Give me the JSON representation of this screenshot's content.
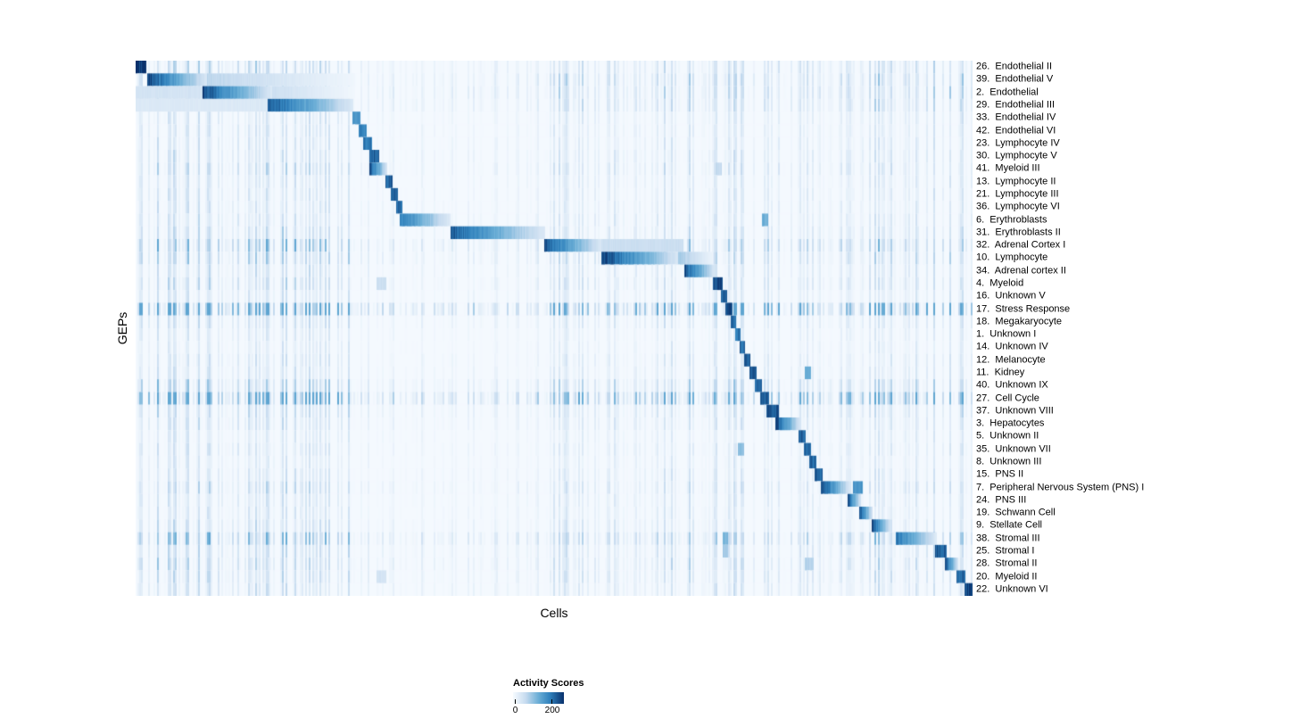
{
  "legend": {
    "title": "Activity Scores",
    "min_label": "0",
    "max_label": "200"
  },
  "chart_data": {
    "type": "heatmap",
    "xlabel": "Cells",
    "ylabel": "GEPs",
    "colormap": "Blues",
    "color_min": "#f7fbff",
    "color_max": "#08306b",
    "value_range_shown": [
      0,
      200
    ],
    "colorbar": {
      "label": "Activity Scores",
      "tick_labels": [
        "0",
        "200"
      ]
    },
    "n_rows": 42,
    "noise_regions": [
      [
        0.0,
        0.02,
        1.2
      ],
      [
        0.02,
        0.26,
        1.6
      ],
      [
        0.26,
        0.49,
        0.55
      ],
      [
        0.49,
        0.63,
        1.1
      ],
      [
        0.63,
        0.74,
        1.5
      ],
      [
        0.74,
        0.88,
        1.0
      ],
      [
        0.88,
        1.0,
        1.4
      ]
    ],
    "rows": [
      {
        "label": "26.  Endothelial II",
        "noise": 0.18,
        "blocks": [
          [
            0.0,
            0.013,
            0.97,
            0
          ]
        ]
      },
      {
        "label": "39.  Endothelial V",
        "noise": 0.22,
        "blocks": [
          [
            0.014,
            0.085,
            0.95,
            1
          ],
          [
            0.085,
            0.26,
            0.28,
            1
          ]
        ]
      },
      {
        "label": "2.  Endothelial",
        "noise": 0.22,
        "blocks": [
          [
            0.0,
            0.08,
            0.18,
            0
          ],
          [
            0.08,
            0.163,
            0.93,
            1
          ],
          [
            0.163,
            0.26,
            0.22,
            1
          ]
        ]
      },
      {
        "label": "29.  Endothelial III",
        "noise": 0.2,
        "blocks": [
          [
            0.0,
            0.158,
            0.14,
            0
          ],
          [
            0.158,
            0.26,
            0.9,
            1
          ]
        ]
      },
      {
        "label": "33.  Endothelial IV",
        "noise": 0.12,
        "blocks": [
          [
            0.259,
            0.269,
            0.65,
            0
          ]
        ]
      },
      {
        "label": "42.  Endothelial VI",
        "noise": 0.12,
        "blocks": [
          [
            0.266,
            0.276,
            0.72,
            0
          ]
        ]
      },
      {
        "label": "23.  Lymphocyte IV",
        "noise": 0.12,
        "blocks": [
          [
            0.272,
            0.282,
            0.78,
            0
          ]
        ]
      },
      {
        "label": "30.  Lymphocyte V",
        "noise": 0.14,
        "blocks": [
          [
            0.279,
            0.291,
            0.85,
            0
          ]
        ]
      },
      {
        "label": "41.  Myeloid III",
        "noise": 0.16,
        "blocks": [
          [
            0.279,
            0.301,
            0.92,
            1
          ],
          [
            0.693,
            0.7,
            0.25,
            0
          ]
        ]
      },
      {
        "label": "13.  Lymphocyte II",
        "noise": 0.12,
        "blocks": [
          [
            0.299,
            0.307,
            0.85,
            0
          ]
        ]
      },
      {
        "label": "21.  Lymphocyte III",
        "noise": 0.12,
        "blocks": [
          [
            0.305,
            0.313,
            0.85,
            0
          ]
        ]
      },
      {
        "label": "36.  Lymphocyte VI",
        "noise": 0.12,
        "blocks": [
          [
            0.311,
            0.319,
            0.82,
            0
          ]
        ]
      },
      {
        "label": "6.  Erythroblasts",
        "noise": 0.14,
        "blocks": [
          [
            0.316,
            0.376,
            0.78,
            1
          ],
          [
            0.748,
            0.756,
            0.5,
            0
          ]
        ]
      },
      {
        "label": "31.  Erythroblasts II",
        "noise": 0.16,
        "blocks": [
          [
            0.376,
            0.489,
            0.88,
            1
          ]
        ]
      },
      {
        "label": "32.  Adrenal Cortex I",
        "noise": 0.28,
        "blocks": [
          [
            0.488,
            0.556,
            0.92,
            1
          ],
          [
            0.556,
            0.655,
            0.22,
            0
          ]
        ]
      },
      {
        "label": "10.  Lymphocyte",
        "noise": 0.2,
        "blocks": [
          [
            0.556,
            0.648,
            0.97,
            1
          ],
          [
            0.648,
            0.69,
            0.35,
            1
          ]
        ]
      },
      {
        "label": "34.  Adrenal cortex II",
        "noise": 0.14,
        "blocks": [
          [
            0.656,
            0.692,
            0.93,
            1
          ]
        ]
      },
      {
        "label": "4.  Myeloid",
        "noise": 0.16,
        "blocks": [
          [
            0.288,
            0.3,
            0.22,
            0
          ],
          [
            0.69,
            0.701,
            0.92,
            0
          ]
        ]
      },
      {
        "label": "16.  Unknown V",
        "noise": 0.12,
        "blocks": [
          [
            0.699,
            0.707,
            0.88,
            0
          ]
        ]
      },
      {
        "label": "17.  Stress Response",
        "noise": 0.55,
        "blocks": [
          [
            0.705,
            0.713,
            0.92,
            0
          ]
        ]
      },
      {
        "label": "18.  Megakaryocyte",
        "noise": 0.14,
        "blocks": [
          [
            0.711,
            0.718,
            0.85,
            0
          ]
        ]
      },
      {
        "label": "1.  Unknown I",
        "noise": 0.1,
        "blocks": [
          [
            0.716,
            0.7225,
            0.8,
            0
          ]
        ]
      },
      {
        "label": "14.  Unknown IV",
        "noise": 0.1,
        "blocks": [
          [
            0.7215,
            0.7285,
            0.85,
            0
          ]
        ]
      },
      {
        "label": "12.  Melanocyte",
        "noise": 0.12,
        "blocks": [
          [
            0.727,
            0.735,
            0.85,
            0
          ]
        ]
      },
      {
        "label": "11.  Kidney",
        "noise": 0.12,
        "blocks": [
          [
            0.7335,
            0.7415,
            0.85,
            0
          ],
          [
            0.8,
            0.807,
            0.5,
            0
          ]
        ]
      },
      {
        "label": "40.  Unknown IX",
        "noise": 0.22,
        "blocks": [
          [
            0.7395,
            0.748,
            0.85,
            0
          ]
        ]
      },
      {
        "label": "27.  Cell Cycle",
        "noise": 0.5,
        "blocks": [
          [
            0.746,
            0.7565,
            0.9,
            0
          ]
        ]
      },
      {
        "label": "37.  Unknown VIII",
        "noise": 0.16,
        "blocks": [
          [
            0.754,
            0.769,
            0.88,
            0
          ]
        ]
      },
      {
        "label": "3.  Hepatocytes",
        "noise": 0.14,
        "blocks": [
          [
            0.764,
            0.794,
            0.93,
            1
          ]
        ]
      },
      {
        "label": "5.  Unknown II",
        "noise": 0.1,
        "blocks": [
          [
            0.792,
            0.801,
            0.85,
            0
          ]
        ]
      },
      {
        "label": "35.  Unknown VII",
        "noise": 0.12,
        "blocks": [
          [
            0.72,
            0.727,
            0.4,
            0
          ],
          [
            0.799,
            0.807,
            0.82,
            0
          ]
        ]
      },
      {
        "label": "8.  Unknown III",
        "noise": 0.1,
        "blocks": [
          [
            0.805,
            0.813,
            0.85,
            0
          ]
        ]
      },
      {
        "label": "15.  PNS II",
        "noise": 0.12,
        "blocks": [
          [
            0.811,
            0.821,
            0.85,
            0
          ]
        ]
      },
      {
        "label": "7.  Peripheral Nervous System (PNS) I",
        "noise": 0.16,
        "blocks": [
          [
            0.819,
            0.853,
            0.96,
            1
          ],
          [
            0.857,
            0.869,
            0.65,
            0
          ]
        ]
      },
      {
        "label": "24.  PNS III",
        "noise": 0.12,
        "blocks": [
          [
            0.851,
            0.867,
            0.9,
            1
          ]
        ]
      },
      {
        "label": "19.  Schwann Cell",
        "noise": 0.12,
        "blocks": [
          [
            0.865,
            0.881,
            0.9,
            1
          ]
        ]
      },
      {
        "label": "9.  Stellate Cell",
        "noise": 0.14,
        "blocks": [
          [
            0.879,
            0.902,
            0.93,
            1
          ]
        ]
      },
      {
        "label": "38.  Stromal III",
        "noise": 0.28,
        "blocks": [
          [
            0.702,
            0.708,
            0.45,
            0
          ],
          [
            0.908,
            0.957,
            0.8,
            1
          ]
        ]
      },
      {
        "label": "25.  Stromal I",
        "noise": 0.16,
        "blocks": [
          [
            0.702,
            0.708,
            0.35,
            0
          ],
          [
            0.955,
            0.969,
            0.88,
            0
          ]
        ]
      },
      {
        "label": "28.  Stromal II",
        "noise": 0.18,
        "blocks": [
          [
            0.8,
            0.81,
            0.3,
            0
          ],
          [
            0.967,
            0.983,
            0.9,
            1
          ]
        ]
      },
      {
        "label": "20.  Myeloid II",
        "noise": 0.16,
        "blocks": [
          [
            0.288,
            0.3,
            0.18,
            0
          ],
          [
            0.981,
            0.991,
            0.85,
            0
          ]
        ]
      },
      {
        "label": "22.  Unknown VI",
        "noise": 0.14,
        "blocks": [
          [
            0.99,
            1.0,
            0.95,
            0
          ]
        ]
      }
    ]
  }
}
